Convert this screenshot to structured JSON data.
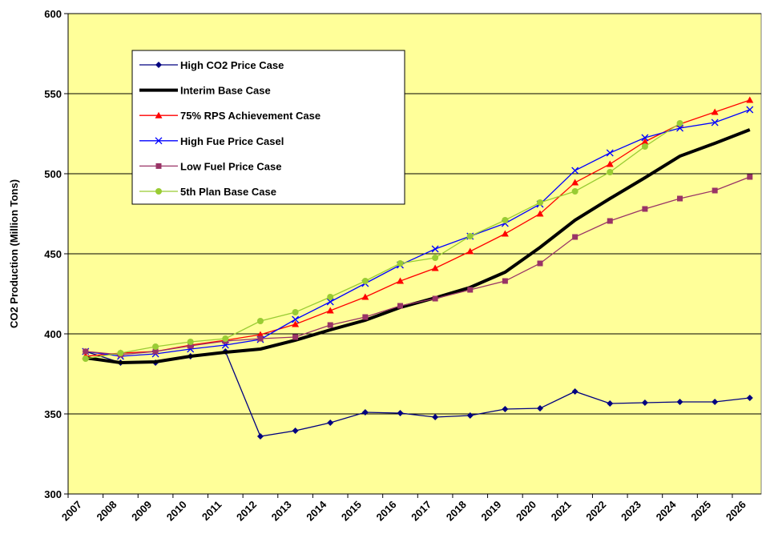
{
  "chart_data": {
    "type": "line",
    "y_label": "CO2 Production (Million Tons)",
    "categories": [
      "2007",
      "2008",
      "2009",
      "2010",
      "2011",
      "2012",
      "2013",
      "2014",
      "2015",
      "2016",
      "2017",
      "2018",
      "2019",
      "2020",
      "2021",
      "2022",
      "2023",
      "2024",
      "2025",
      "2026"
    ],
    "series": [
      {
        "name": "High CO2 Price Case",
        "color": "#000080",
        "marker": "diamond",
        "values": [
          389,
          382,
          382,
          386,
          389,
          336,
          339.5,
          344.5,
          351,
          350.5,
          348,
          349,
          353,
          353.5,
          364,
          356.5,
          357,
          357.5,
          357.5,
          360
        ]
      },
      {
        "name": "Interim Base Case",
        "color": "#000000",
        "marker": "none",
        "values": [
          385,
          382,
          382.5,
          386,
          388.5,
          390.5,
          396,
          402.5,
          408.5,
          416.5,
          422.5,
          429,
          438.5,
          454,
          471,
          484.5,
          497.5,
          511,
          519,
          527.5
        ]
      },
      {
        "name": "75% RPS Achievement Case",
        "color": "#ff0000",
        "marker": "triangle",
        "values": [
          386,
          388,
          389,
          393,
          396,
          399.5,
          406,
          414.5,
          423,
          433,
          441,
          451.5,
          462.5,
          475,
          494.5,
          506,
          520,
          531,
          538.5,
          546
        ]
      },
      {
        "name": "High Fue Price Casel",
        "color": "#0000ff",
        "marker": "x",
        "values": [
          389,
          386,
          387.5,
          390.5,
          393,
          396.5,
          409,
          420,
          431.5,
          443,
          453,
          461,
          469,
          481,
          502,
          513,
          522.5,
          528.5,
          532,
          540
        ]
      },
      {
        "name": "Low Fuel Price Case",
        "color": "#993366",
        "marker": "square",
        "values": [
          389,
          387,
          389,
          392.5,
          395.5,
          397,
          398,
          405.5,
          410.5,
          417.5,
          422,
          427.5,
          433,
          444,
          460.5,
          470.5,
          478,
          484.5,
          489.5,
          498
        ]
      },
      {
        "name": "5th Plan Base Case",
        "color": "#99cc33",
        "marker": "circle",
        "values": [
          384.5,
          388,
          392,
          395,
          397,
          408,
          413.5,
          423,
          433,
          444,
          447.5,
          461,
          471,
          482,
          489,
          501,
          517,
          531.5,
          null,
          null
        ]
      }
    ],
    "ylim": [
      300,
      600
    ],
    "yticks": [
      300,
      350,
      400,
      450,
      500,
      550,
      600
    ],
    "grid": true,
    "plot_background": "#ffff99"
  }
}
